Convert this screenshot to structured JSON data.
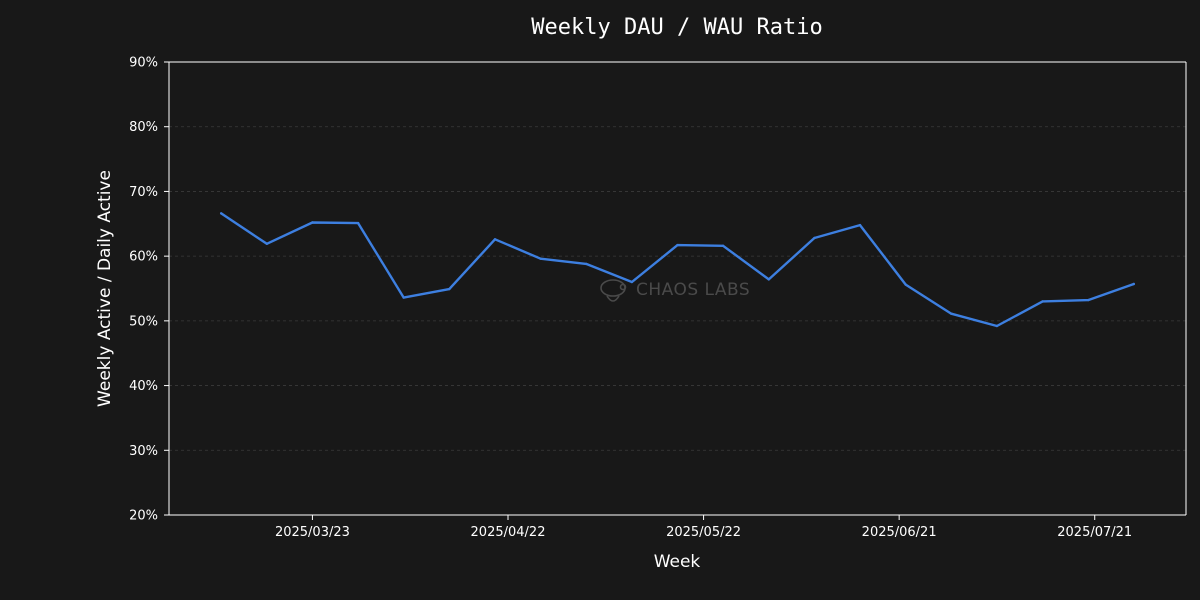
{
  "chart_data": {
    "type": "line",
    "title": "Weekly DAU / WAU Ratio",
    "xlabel": "Week",
    "ylabel": "Weekly Active / Daily Active",
    "x_ticks": [
      "2025/03/23",
      "2025/04/22",
      "2025/05/22",
      "2025/06/21",
      "2025/07/21"
    ],
    "y_ticks": [
      "20%",
      "30%",
      "40%",
      "50%",
      "60%",
      "70%",
      "80%",
      "90%"
    ],
    "ylim": [
      20,
      90
    ],
    "xlim": [
      "2025-03-01",
      "2025-08-04"
    ],
    "grid": "horizontal dashed",
    "legend": "none",
    "series": [
      {
        "color": "#3d7fe0",
        "points": [
          {
            "x": "2025-03-09",
            "y": 66.6
          },
          {
            "x": "2025-03-16",
            "y": 61.9
          },
          {
            "x": "2025-03-23",
            "y": 65.2
          },
          {
            "x": "2025-03-30",
            "y": 65.1
          },
          {
            "x": "2025-04-06",
            "y": 53.6
          },
          {
            "x": "2025-04-13",
            "y": 54.9
          },
          {
            "x": "2025-04-20",
            "y": 62.6
          },
          {
            "x": "2025-04-27",
            "y": 59.6
          },
          {
            "x": "2025-05-04",
            "y": 58.8
          },
          {
            "x": "2025-05-11",
            "y": 56.0
          },
          {
            "x": "2025-05-18",
            "y": 61.7
          },
          {
            "x": "2025-05-25",
            "y": 61.6
          },
          {
            "x": "2025-06-01",
            "y": 56.4
          },
          {
            "x": "2025-06-08",
            "y": 62.8
          },
          {
            "x": "2025-06-15",
            "y": 64.8
          },
          {
            "x": "2025-06-22",
            "y": 55.6
          },
          {
            "x": "2025-06-29",
            "y": 51.1
          },
          {
            "x": "2025-07-06",
            "y": 49.2
          },
          {
            "x": "2025-07-13",
            "y": 53.0
          },
          {
            "x": "2025-07-20",
            "y": 53.2
          },
          {
            "x": "2025-07-27",
            "y": 55.7
          }
        ]
      }
    ]
  },
  "watermark": {
    "text": "CHAOS LABS",
    "icon": "chaos-labs-logo-icon"
  },
  "colors": {
    "background": "#181818",
    "axes": "#ffffff",
    "grid": "#3a3a3a",
    "line": "#3d7fe0"
  }
}
